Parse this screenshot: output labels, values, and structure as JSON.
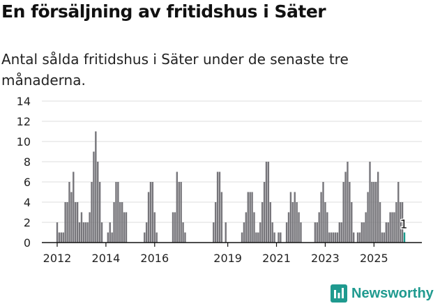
{
  "header": {
    "title": "En försäljning av fritidshus i Säter",
    "subtitle": "Antal sålda fritidshus i Säter under de senaste tre månaderna."
  },
  "branding": {
    "logo_text": "Newsworthy"
  },
  "colors": {
    "bar": "#76757a",
    "highlight": "#1a9a8c",
    "grid": "#dcdcdc",
    "axis": "#111111"
  },
  "chart_data": {
    "type": "bar",
    "title": "En försäljning av fritidshus i Säter",
    "subtitle": "Antal sålda fritidshus i Säter under de senaste tre månaderna.",
    "xlabel": "",
    "ylabel": "",
    "ylim": [
      0,
      14
    ],
    "yticks": [
      0,
      2,
      4,
      6,
      8,
      10,
      12,
      14
    ],
    "xticks": [
      "2012",
      "2014",
      "2016",
      "2019",
      "2021",
      "2023",
      "2025"
    ],
    "grid": true,
    "start_period": "2012-01",
    "frequency": "monthly",
    "values": [
      2,
      1,
      1,
      1,
      4,
      4,
      6,
      5,
      7,
      4,
      4,
      2,
      3,
      2,
      2,
      2,
      3,
      6,
      9,
      11,
      8,
      6,
      2,
      0,
      0,
      1,
      2,
      1,
      4,
      6,
      6,
      4,
      4,
      3,
      3,
      0,
      0,
      0,
      0,
      0,
      0,
      0,
      0,
      1,
      2,
      5,
      6,
      6,
      3,
      1,
      0,
      0,
      0,
      0,
      0,
      0,
      0,
      3,
      3,
      7,
      6,
      6,
      2,
      1,
      0,
      0,
      0,
      0,
      0,
      0,
      0,
      0,
      0,
      0,
      0,
      0,
      0,
      2,
      4,
      7,
      7,
      5,
      0,
      2,
      0,
      0,
      0,
      0,
      0,
      0,
      0,
      1,
      2,
      3,
      5,
      5,
      5,
      3,
      1,
      1,
      2,
      4,
      6,
      8,
      8,
      4,
      2,
      1,
      0,
      1,
      1,
      0,
      0,
      2,
      3,
      5,
      4,
      5,
      4,
      3,
      2,
      0,
      0,
      0,
      0,
      0,
      0,
      2,
      2,
      3,
      5,
      6,
      4,
      3,
      1,
      1,
      1,
      1,
      1,
      2,
      2,
      6,
      7,
      8,
      6,
      4,
      1,
      0,
      1,
      1,
      2,
      2,
      3,
      5,
      8,
      6,
      6,
      6,
      7,
      4,
      1,
      1,
      2,
      2,
      3,
      3,
      3,
      4,
      6,
      4,
      4,
      1
    ],
    "highlight_last": true,
    "annotation": {
      "text": "1",
      "target": "last-bar"
    }
  }
}
